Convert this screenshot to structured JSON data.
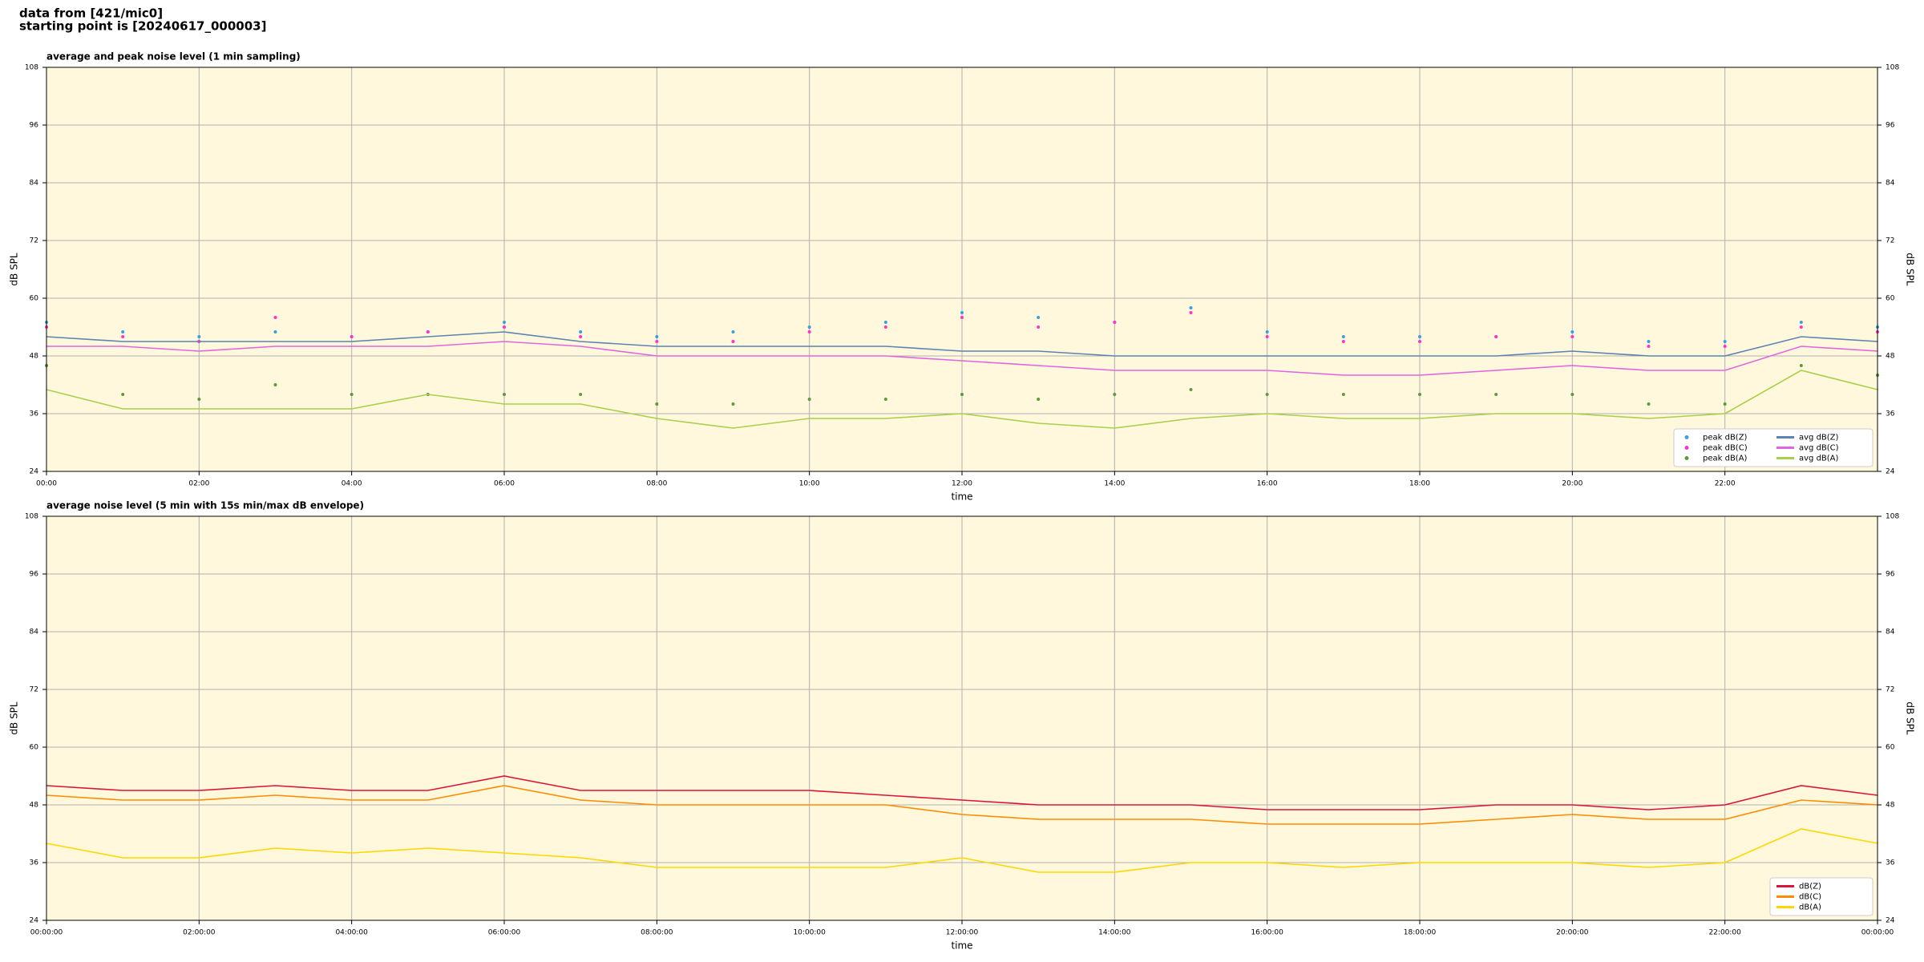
{
  "header": {
    "lines": [
      "data from [421/mic0]",
      "starting point is [20240617_000003]"
    ]
  },
  "chart_data": [
    {
      "type": "line",
      "title": "average and peak noise level (1 min sampling)",
      "xlabel": "time",
      "ylabel": "dB SPL",
      "x": [
        0,
        1,
        2,
        3,
        4,
        5,
        6,
        7,
        8,
        9,
        10,
        11,
        12,
        13,
        14,
        15,
        16,
        17,
        18,
        19,
        20,
        21,
        22,
        23,
        24
      ],
      "xlim": [
        0,
        24
      ],
      "xticks": [
        {
          "value": 0,
          "label": "00:00"
        },
        {
          "value": 2,
          "label": "02:00"
        },
        {
          "value": 4,
          "label": "04:00"
        },
        {
          "value": 6,
          "label": "06:00"
        },
        {
          "value": 8,
          "label": "08:00"
        },
        {
          "value": 10,
          "label": "10:00"
        },
        {
          "value": 12,
          "label": "12:00"
        },
        {
          "value": 14,
          "label": "14:00"
        },
        {
          "value": 16,
          "label": "16:00"
        },
        {
          "value": 18,
          "label": "18:00"
        },
        {
          "value": 20,
          "label": "20:00"
        },
        {
          "value": 22,
          "label": "22:00"
        }
      ],
      "ylim": [
        24,
        108
      ],
      "yticks": [
        24,
        36,
        48,
        60,
        72,
        84,
        96,
        108
      ],
      "grid": true,
      "legend": "lower right",
      "series": [
        {
          "name": "peak dB(Z)",
          "kind": "scatter",
          "color": "#3a9fdd",
          "values": [
            55,
            53,
            52,
            53,
            52,
            53,
            55,
            53,
            52,
            53,
            54,
            55,
            57,
            56,
            55,
            58,
            53,
            52,
            52,
            52,
            53,
            51,
            51,
            55,
            54
          ]
        },
        {
          "name": "peak dB(C)",
          "kind": "scatter",
          "color": "#ff33cc",
          "values": [
            54,
            52,
            51,
            56,
            52,
            53,
            54,
            52,
            51,
            51,
            53,
            54,
            56,
            54,
            55,
            57,
            52,
            51,
            51,
            52,
            52,
            50,
            50,
            54,
            53
          ]
        },
        {
          "name": "peak dB(A)",
          "kind": "scatter",
          "color": "#5f9a3a",
          "values": [
            46,
            40,
            39,
            42,
            40,
            40,
            40,
            40,
            38,
            38,
            39,
            39,
            40,
            39,
            40,
            41,
            40,
            40,
            40,
            40,
            40,
            38,
            38,
            46,
            44
          ]
        },
        {
          "name": "avg dB(Z)",
          "kind": "line",
          "color": "#5b84b1",
          "values": [
            52,
            51,
            51,
            51,
            51,
            52,
            53,
            51,
            50,
            50,
            50,
            50,
            49,
            49,
            48,
            48,
            48,
            48,
            48,
            48,
            49,
            48,
            48,
            52,
            51
          ]
        },
        {
          "name": "avg dB(C)",
          "kind": "line",
          "color": "#e066e0",
          "values": [
            50,
            50,
            49,
            50,
            50,
            50,
            51,
            50,
            48,
            48,
            48,
            48,
            47,
            46,
            45,
            45,
            45,
            44,
            44,
            45,
            46,
            45,
            45,
            50,
            49
          ]
        },
        {
          "name": "avg dB(A)",
          "kind": "line",
          "color": "#a8d04a",
          "values": [
            41,
            37,
            37,
            37,
            37,
            40,
            38,
            38,
            35,
            33,
            35,
            35,
            36,
            34,
            33,
            35,
            36,
            35,
            35,
            36,
            36,
            35,
            36,
            45,
            41
          ]
        }
      ]
    },
    {
      "type": "line",
      "title": "average noise level (5 min with 15s min/max dB envelope)",
      "xlabel": "time",
      "ylabel": "dB SPL",
      "x": [
        0,
        1,
        2,
        3,
        4,
        5,
        6,
        7,
        8,
        9,
        10,
        11,
        12,
        13,
        14,
        15,
        16,
        17,
        18,
        19,
        20,
        21,
        22,
        23,
        24
      ],
      "xlim": [
        0,
        24
      ],
      "xticks": [
        {
          "value": 0,
          "label": "00:00:00"
        },
        {
          "value": 2,
          "label": "02:00:00"
        },
        {
          "value": 4,
          "label": "04:00:00"
        },
        {
          "value": 6,
          "label": "06:00:00"
        },
        {
          "value": 8,
          "label": "08:00:00"
        },
        {
          "value": 10,
          "label": "10:00:00"
        },
        {
          "value": 12,
          "label": "12:00:00"
        },
        {
          "value": 14,
          "label": "14:00:00"
        },
        {
          "value": 16,
          "label": "16:00:00"
        },
        {
          "value": 18,
          "label": "18:00:00"
        },
        {
          "value": 20,
          "label": "20:00:00"
        },
        {
          "value": 22,
          "label": "22:00:00"
        },
        {
          "value": 24,
          "label": "00:00:00"
        }
      ],
      "ylim": [
        24,
        108
      ],
      "yticks": [
        24,
        36,
        48,
        60,
        72,
        84,
        96,
        108
      ],
      "grid": true,
      "legend": "lower right",
      "series": [
        {
          "name": "dB(Z)",
          "kind": "line",
          "color": "#dc143c",
          "values": [
            52,
            51,
            51,
            52,
            51,
            51,
            54,
            51,
            51,
            51,
            51,
            50,
            49,
            48,
            48,
            48,
            47,
            47,
            47,
            48,
            48,
            47,
            48,
            52,
            50
          ]
        },
        {
          "name": "dB(C)",
          "kind": "line",
          "color": "#ff8c00",
          "values": [
            50,
            49,
            49,
            50,
            49,
            49,
            52,
            49,
            48,
            48,
            48,
            48,
            46,
            45,
            45,
            45,
            44,
            44,
            44,
            45,
            46,
            45,
            45,
            49,
            48
          ]
        },
        {
          "name": "dB(A)",
          "kind": "line",
          "color": "#ffd700",
          "values": [
            40,
            37,
            37,
            39,
            38,
            39,
            38,
            37,
            35,
            35,
            35,
            35,
            37,
            34,
            34,
            36,
            36,
            35,
            36,
            36,
            36,
            35,
            36,
            43,
            40
          ]
        }
      ]
    }
  ]
}
